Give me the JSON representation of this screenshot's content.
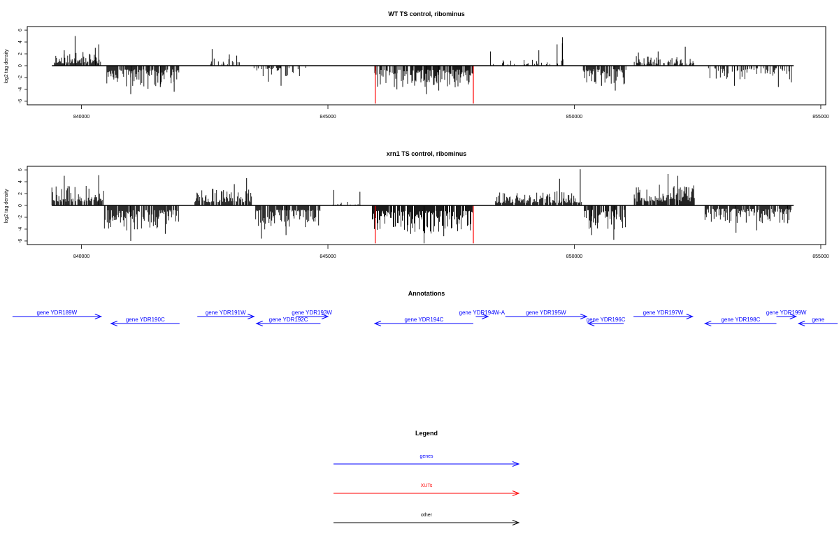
{
  "chart_data": [
    {
      "type": "bar",
      "title": "WT TS control, ribominus",
      "ylabel": "log2 tag density",
      "xlim": [
        838900,
        855100
      ],
      "ylim": [
        -6.6,
        6.6
      ],
      "xticks": [
        840000,
        845000,
        850000,
        855000
      ],
      "xtick_labels": [
        "840000",
        "845000",
        "850000",
        "855000"
      ],
      "yticks": [
        -6,
        -4,
        -2,
        0,
        2,
        4,
        6
      ],
      "ytick_labels": [
        "-6",
        "-4",
        "-2",
        "0",
        "2",
        "4",
        "6"
      ],
      "baseline_range": [
        839400,
        854450
      ],
      "series": [
        {
          "color": "#000000",
          "segments": [
            {
              "x0": 839450,
              "x1": 840400,
              "direction": 1,
              "amp": 1.6,
              "peaks": [
                [
                  839870,
                  5.0
                ],
                [
                  839650,
                  2.6
                ],
                [
                  840030,
                  2.3
                ],
                [
                  840350,
                  3.6
                ],
                [
                  840280,
                  3.0
                ]
              ]
            },
            {
              "x0": 840500,
              "x1": 841980,
              "direction": -1,
              "amp": 2.6,
              "peaks": [
                [
                  841000,
                  -4.8
                ],
                [
                  841880,
                  -4.4
                ],
                [
                  841350,
                  -3.9
                ],
                [
                  841600,
                  -3.6
                ]
              ]
            },
            {
              "x0": 842550,
              "x1": 843300,
              "direction": 1,
              "amp": 0.9,
              "density": 0.35,
              "peaks": [
                [
                  842650,
                  2.8
                ],
                [
                  843000,
                  1.9
                ],
                [
                  843150,
                  1.7
                ]
              ]
            },
            {
              "x0": 843500,
              "x1": 844600,
              "direction": -1,
              "amp": 1.4,
              "density": 0.4,
              "peaks": [
                [
                  844050,
                  -3.4
                ],
                [
                  843790,
                  -2.7
                ]
              ]
            },
            {
              "x0": 845950,
              "x1": 847950,
              "direction": -1,
              "amp": 2.7,
              "peaks": [
                [
                  847000,
                  -4.8
                ],
                [
                  847250,
                  -4.2
                ],
                [
                  846400,
                  -4.0
                ]
              ]
            },
            {
              "x0": 848300,
              "x1": 849680,
              "direction": 1,
              "amp": 0.8,
              "density": 0.3,
              "peaks": [
                [
                  848300,
                  2.4
                ],
                [
                  849280,
                  2.6
                ],
                [
                  849650,
                  3.6
                ]
              ]
            },
            {
              "x0": 849740,
              "x1": 849780,
              "direction": 1,
              "amp": 3.0,
              "density": 1,
              "peaks": [
                [
                  849760,
                  4.8
                ]
              ]
            },
            {
              "x0": 850180,
              "x1": 851050,
              "direction": -1,
              "amp": 2.4,
              "peaks": [
                [
                  850830,
                  -4.2
                ],
                [
                  850550,
                  -3.4
                ]
              ]
            },
            {
              "x0": 851200,
              "x1": 852450,
              "direction": 1,
              "amp": 1.2,
              "density": 0.45,
              "peaks": [
                [
                  852250,
                  3.2
                ],
                [
                  851700,
                  2.4
                ],
                [
                  851300,
                  2.2
                ]
              ]
            },
            {
              "x0": 852650,
              "x1": 854400,
              "direction": -1,
              "amp": 1.7,
              "density": 0.45,
              "peaks": [
                [
                  853250,
                  -3.4
                ],
                [
                  854140,
                  -3.6
                ],
                [
                  854400,
                  -2.8
                ]
              ]
            }
          ]
        },
        {
          "color": "#ff0000",
          "spikes": [
            [
              845960,
              -6.4
            ],
            [
              847950,
              -6.4
            ]
          ]
        }
      ]
    },
    {
      "type": "bar",
      "title": "xrn1 TS control, ribominus",
      "ylabel": "log2 tag density",
      "xlim": [
        838900,
        855100
      ],
      "ylim": [
        -6.6,
        6.6
      ],
      "xticks": [
        840000,
        845000,
        850000,
        855000
      ],
      "xtick_labels": [
        "840000",
        "845000",
        "850000",
        "855000"
      ],
      "yticks": [
        -6,
        -4,
        -2,
        0,
        2,
        4,
        6
      ],
      "ytick_labels": [
        "-6",
        "-4",
        "-2",
        "0",
        "2",
        "4",
        "6"
      ],
      "baseline_range": [
        839400,
        854450
      ],
      "series": [
        {
          "color": "#000000",
          "segments": [
            {
              "x0": 839400,
              "x1": 840450,
              "direction": 1,
              "amp": 2.6,
              "peaks": [
                [
                  839650,
                  5.0
                ],
                [
                  840350,
                  5.1
                ]
              ]
            },
            {
              "x0": 840450,
              "x1": 841980,
              "direction": -1,
              "amp": 3.2,
              "peaks": [
                [
                  841000,
                  -6.0
                ],
                [
                  841700,
                  -4.8
                ]
              ]
            },
            {
              "x0": 842300,
              "x1": 843450,
              "direction": 1,
              "amp": 2.2,
              "peaks": [
                [
                  843350,
                  4.6
                ],
                [
                  843100,
                  3.6
                ]
              ]
            },
            {
              "x0": 843520,
              "x1": 844850,
              "direction": -1,
              "amp": 3.0,
              "peaks": [
                [
                  843650,
                  -5.6
                ],
                [
                  844150,
                  -5.0
                ]
              ]
            },
            {
              "x0": 845100,
              "x1": 845700,
              "direction": 1,
              "amp": 0.5,
              "density": 0.2,
              "peaks": [
                [
                  845120,
                  2.6
                ],
                [
                  845650,
                  2.3
                ]
              ]
            },
            {
              "x0": 845900,
              "x1": 847950,
              "direction": -1,
              "amp": 3.6,
              "peaks": [
                [
                  846950,
                  -6.4
                ],
                [
                  847350,
                  -5.2
                ]
              ]
            },
            {
              "x0": 848400,
              "x1": 850150,
              "direction": 1,
              "amp": 1.8,
              "peaks": [
                [
                  850120,
                  6.1
                ],
                [
                  849700,
                  4.5
                ]
              ]
            },
            {
              "x0": 850200,
              "x1": 851050,
              "direction": -1,
              "amp": 3.0,
              "peaks": [
                [
                  850800,
                  -5.8
                ],
                [
                  850350,
                  -5.0
                ]
              ]
            },
            {
              "x0": 851200,
              "x1": 852450,
              "direction": 1,
              "amp": 2.6,
              "peaks": [
                [
                  851900,
                  5.3
                ],
                [
                  852100,
                  5.0
                ]
              ]
            },
            {
              "x0": 852650,
              "x1": 854400,
              "direction": -1,
              "amp": 2.2,
              "peaks": [
                [
                  853280,
                  -4.6
                ],
                [
                  853700,
                  -4.2
                ],
                [
                  854330,
                  -3.0
                ]
              ]
            }
          ]
        },
        {
          "color": "#ff0000",
          "spikes": [
            [
              845960,
              -6.4
            ],
            [
              847950,
              -6.4
            ]
          ]
        }
      ]
    }
  ],
  "annotations": {
    "title": "Annotations",
    "genes": [
      {
        "label": "gene YDR189W",
        "start": 838600,
        "end": 840400,
        "strand": "+",
        "row": 0
      },
      {
        "label": "gene YDR190C",
        "start": 840600,
        "end": 841990,
        "strand": "-",
        "row": 1
      },
      {
        "label": "gene YDR191W",
        "start": 842350,
        "end": 843500,
        "strand": "+",
        "row": 0
      },
      {
        "label": "gene YDR192C",
        "start": 843550,
        "end": 844850,
        "strand": "-",
        "row": 1
      },
      {
        "label": "gene YDR193W",
        "start": 844350,
        "end": 845000,
        "strand": "+",
        "row": 0
      },
      {
        "label": "gene YDR194C",
        "start": 845950,
        "end": 847950,
        "strand": "-",
        "row": 1
      },
      {
        "label": "gene YDR194W-A",
        "start": 848000,
        "end": 848250,
        "strand": "+",
        "row": 0
      },
      {
        "label": "gene YDR195W",
        "start": 848600,
        "end": 850250,
        "strand": "+",
        "row": 0
      },
      {
        "label": "gene YDR196C",
        "start": 850280,
        "end": 851000,
        "strand": "-",
        "row": 1
      },
      {
        "label": "gene YDR197W",
        "start": 851200,
        "end": 852400,
        "strand": "+",
        "row": 0
      },
      {
        "label": "gene YDR198C",
        "start": 852650,
        "end": 854100,
        "strand": "-",
        "row": 1
      },
      {
        "label": "gene YDR199W",
        "start": 854100,
        "end": 854500,
        "strand": "+",
        "row": 0
      },
      {
        "label": "gene",
        "start": 854550,
        "end": 855400,
        "strand": "-",
        "row": 1
      }
    ]
  },
  "legend": {
    "title": "Legend",
    "items": [
      {
        "label": "genes",
        "color": "#0000ff"
      },
      {
        "label": "XUTs",
        "color": "#ff0000"
      },
      {
        "label": "other",
        "color": "#000000"
      }
    ]
  }
}
